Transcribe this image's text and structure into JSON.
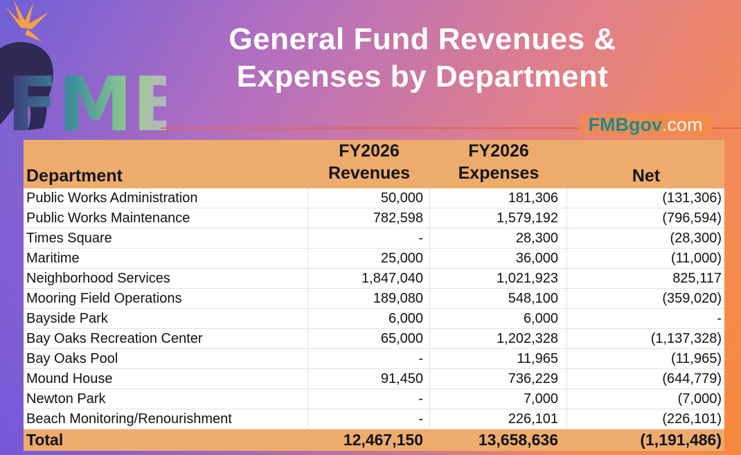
{
  "title": {
    "line1": "General Fund Revenues &",
    "line2": "Expenses by Department"
  },
  "site": {
    "brand": "FMBgov",
    "domain": ".com"
  },
  "logo": {
    "text": "FMB"
  },
  "table": {
    "headers": {
      "department": "Department",
      "revenues_1": "FY2026",
      "revenues_2": "Revenues",
      "expenses_1": "FY2026",
      "expenses_2": "Expenses",
      "net": "Net"
    },
    "rows": [
      {
        "department": "Public Works Administration",
        "revenues": "50,000",
        "expenses": "181,306",
        "net": "(131,306)"
      },
      {
        "department": "Public Works Maintenance",
        "revenues": "782,598",
        "expenses": "1,579,192",
        "net": "(796,594)"
      },
      {
        "department": "Times Square",
        "revenues": "-",
        "expenses": "28,300",
        "net": "(28,300)"
      },
      {
        "department": "Maritime",
        "revenues": "25,000",
        "expenses": "36,000",
        "net": "(11,000)"
      },
      {
        "department": "Neighborhood Services",
        "revenues": "1,847,040",
        "expenses": "1,021,923",
        "net": "825,117"
      },
      {
        "department": "Mooring Field Operations",
        "revenues": "189,080",
        "expenses": "548,100",
        "net": "(359,020)"
      },
      {
        "department": "Bayside Park",
        "revenues": "6,000",
        "expenses": "6,000",
        "net": "-"
      },
      {
        "department": "Bay Oaks Recreation Center",
        "revenues": "65,000",
        "expenses": "1,202,328",
        "net": "(1,137,328)"
      },
      {
        "department": "Bay Oaks Pool",
        "revenues": "-",
        "expenses": "11,965",
        "net": "(11,965)"
      },
      {
        "department": "Mound House",
        "revenues": "91,450",
        "expenses": "736,229",
        "net": "(644,779)"
      },
      {
        "department": "Newton Park",
        "revenues": "-",
        "expenses": "7,000",
        "net": "(7,000)"
      },
      {
        "department": "Beach Monitoring/Renourishment",
        "revenues": "-",
        "expenses": "226,101",
        "net": "(226,101)"
      }
    ],
    "total": {
      "label": "Total",
      "revenues": "12,467,150",
      "expenses": "13,658,636",
      "net": "(1,191,486)"
    }
  },
  "colors": {
    "header_fill": "#eeac6c",
    "brand_teal": "#1f8a86",
    "rule": "#e8644e"
  }
}
